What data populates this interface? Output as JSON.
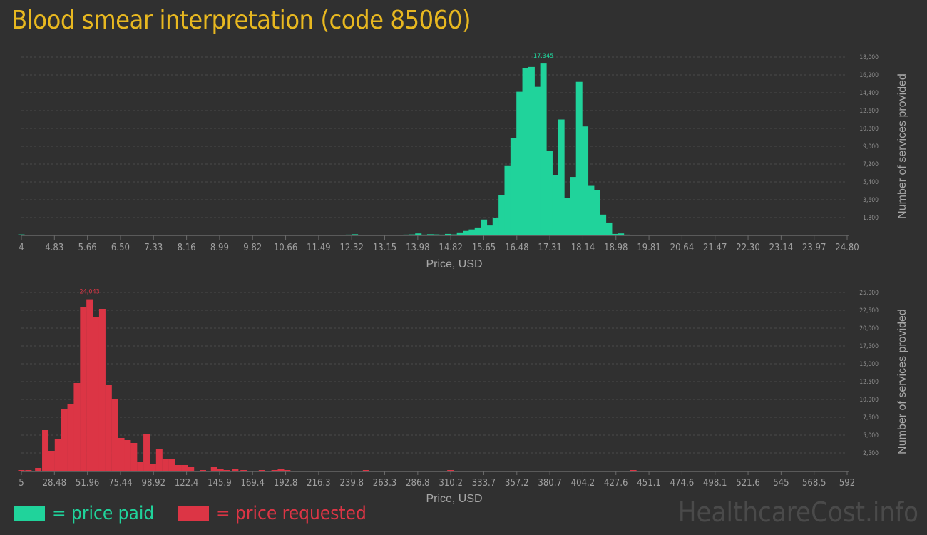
{
  "title": "Blood smear interpretation (code 85060)",
  "legend": {
    "paid_label": "= price paid",
    "requested_label": "= price requested",
    "paid_color": "#20d39b",
    "requested_color": "#dc3545"
  },
  "watermark": "HealthcareCost.info",
  "chart_data": [
    {
      "type": "bar",
      "name": "price paid",
      "xlabel": "Price, USD",
      "ylabel": "Number of services provided",
      "color": "#20d39b",
      "x_tick_labels": [
        "4",
        "4.83",
        "5.66",
        "6.50",
        "7.33",
        "8.16",
        "8.99",
        "9.82",
        "10.66",
        "11.49",
        "12.32",
        "13.15",
        "13.98",
        "14.82",
        "15.65",
        "16.48",
        "17.31",
        "18.14",
        "18.98",
        "19.81",
        "20.64",
        "21.47",
        "22.30",
        "23.14",
        "23.97",
        "24.80"
      ],
      "y_tick_labels": [
        "1,800",
        "3,600",
        "5,400",
        "7,200",
        "9,000",
        "10,800",
        "12,600",
        "14,400",
        "16,200",
        "18,000"
      ],
      "ylim": [
        0,
        18000
      ],
      "peak_label": "17,345",
      "values": [
        100,
        0,
        0,
        0,
        0,
        0,
        0,
        0,
        0,
        0,
        0,
        0,
        0,
        0,
        50,
        0,
        0,
        0,
        0,
        0,
        0,
        0,
        0,
        0,
        0,
        0,
        0,
        0,
        0,
        0,
        0,
        0,
        0,
        0,
        0,
        0,
        0,
        0,
        0,
        0,
        0,
        0,
        0,
        0,
        0,
        0,
        0,
        0,
        0,
        0,
        0,
        0,
        0,
        0,
        0,
        0,
        0,
        0,
        0,
        0,
        0,
        0,
        0,
        0,
        0,
        0,
        0,
        0,
        0,
        0,
        0,
        0,
        0,
        0,
        0,
        0,
        0,
        0,
        0,
        0,
        0,
        0,
        0,
        0,
        0,
        0,
        0,
        0,
        0,
        0,
        0,
        0,
        0,
        0,
        0,
        0,
        0,
        0,
        0,
        0,
        0,
        0,
        0,
        0,
        0,
        0,
        0,
        0,
        0,
        0,
        0,
        0,
        0,
        0,
        0,
        0,
        0,
        0,
        0,
        0,
        0,
        0,
        0,
        0,
        0,
        0,
        0,
        0,
        0,
        0,
        0,
        0,
        0,
        0,
        0,
        0,
        0,
        0,
        0,
        0,
        0,
        0,
        0,
        0,
        0,
        0,
        0,
        0,
        0,
        0,
        0,
        0,
        0,
        0,
        0,
        0,
        0,
        0,
        0,
        0,
        0,
        0,
        0,
        0,
        0,
        0,
        0,
        0,
        0,
        0,
        0,
        0,
        0,
        0,
        0,
        0,
        0,
        0,
        0,
        0,
        0,
        0,
        0,
        0,
        0,
        0,
        0,
        0,
        0,
        0,
        0,
        0,
        0,
        0,
        0,
        0,
        0,
        0,
        0,
        0
      ],
      "bars": [
        {
          "x": 4.0,
          "v": 100
        },
        {
          "x": 6.85,
          "v": 50
        },
        {
          "x": 12.1,
          "v": 60
        },
        {
          "x": 12.25,
          "v": 80
        },
        {
          "x": 12.4,
          "v": 120
        },
        {
          "x": 13.2,
          "v": 60
        },
        {
          "x": 13.55,
          "v": 60
        },
        {
          "x": 13.7,
          "v": 80
        },
        {
          "x": 13.85,
          "v": 100
        },
        {
          "x": 14.0,
          "v": 200
        },
        {
          "x": 14.15,
          "v": 80
        },
        {
          "x": 14.3,
          "v": 120
        },
        {
          "x": 14.45,
          "v": 100
        },
        {
          "x": 14.6,
          "v": 80
        },
        {
          "x": 14.75,
          "v": 150
        },
        {
          "x": 14.9,
          "v": 100
        },
        {
          "x": 15.05,
          "v": 300
        },
        {
          "x": 15.2,
          "v": 450
        },
        {
          "x": 15.35,
          "v": 600
        },
        {
          "x": 15.5,
          "v": 800
        },
        {
          "x": 15.65,
          "v": 1600
        },
        {
          "x": 15.8,
          "v": 1000
        },
        {
          "x": 15.95,
          "v": 1800
        },
        {
          "x": 16.1,
          "v": 4100
        },
        {
          "x": 16.25,
          "v": 7000
        },
        {
          "x": 16.4,
          "v": 9800
        },
        {
          "x": 16.55,
          "v": 14500
        },
        {
          "x": 16.7,
          "v": 16900
        },
        {
          "x": 16.85,
          "v": 17000
        },
        {
          "x": 17.0,
          "v": 15000
        },
        {
          "x": 17.15,
          "v": 17345
        },
        {
          "x": 17.3,
          "v": 8500
        },
        {
          "x": 17.45,
          "v": 6100
        },
        {
          "x": 17.6,
          "v": 11700
        },
        {
          "x": 17.75,
          "v": 3800
        },
        {
          "x": 17.9,
          "v": 5900
        },
        {
          "x": 18.05,
          "v": 15500
        },
        {
          "x": 18.2,
          "v": 11000
        },
        {
          "x": 18.35,
          "v": 5000
        },
        {
          "x": 18.5,
          "v": 4600
        },
        {
          "x": 18.65,
          "v": 2100
        },
        {
          "x": 18.8,
          "v": 1300
        },
        {
          "x": 18.95,
          "v": 150
        },
        {
          "x": 19.1,
          "v": 200
        },
        {
          "x": 19.25,
          "v": 80
        },
        {
          "x": 19.4,
          "v": 60
        },
        {
          "x": 19.7,
          "v": 50
        },
        {
          "x": 20.5,
          "v": 50
        },
        {
          "x": 21.0,
          "v": 50
        },
        {
          "x": 21.55,
          "v": 50
        },
        {
          "x": 21.7,
          "v": 50
        },
        {
          "x": 22.05,
          "v": 50
        },
        {
          "x": 22.4,
          "v": 50
        },
        {
          "x": 22.55,
          "v": 50
        },
        {
          "x": 22.95,
          "v": 50
        }
      ]
    },
    {
      "type": "bar",
      "name": "price requested",
      "xlabel": "Price, USD",
      "ylabel": "Number of services provided",
      "color": "#dc3545",
      "x_tick_labels": [
        "5",
        "28.48",
        "51.96",
        "75.44",
        "98.92",
        "122.4",
        "145.9",
        "169.4",
        "192.8",
        "216.3",
        "239.8",
        "263.3",
        "286.8",
        "310.2",
        "333.7",
        "357.2",
        "380.7",
        "404.2",
        "427.6",
        "451.1",
        "474.6",
        "498.1",
        "521.6",
        "545",
        "568.5",
        "592"
      ],
      "y_tick_labels": [
        "2,500",
        "5,000",
        "7,500",
        "10,000",
        "12,500",
        "15,000",
        "17,500",
        "20,000",
        "22,500",
        "25,000"
      ],
      "ylim": [
        0,
        25000
      ],
      "peak_label": "24,043",
      "values": [],
      "bars": [
        {
          "x": 5.0,
          "v": 100
        },
        {
          "x": 10.0,
          "v": 100
        },
        {
          "x": 17.0,
          "v": 400
        },
        {
          "x": 22.0,
          "v": 5700
        },
        {
          "x": 26.5,
          "v": 2800
        },
        {
          "x": 31.0,
          "v": 4500
        },
        {
          "x": 35.5,
          "v": 8600
        },
        {
          "x": 40.0,
          "v": 9400
        },
        {
          "x": 44.5,
          "v": 12300
        },
        {
          "x": 49.0,
          "v": 22900
        },
        {
          "x": 53.5,
          "v": 24043
        },
        {
          "x": 58.0,
          "v": 21600
        },
        {
          "x": 62.5,
          "v": 22700
        },
        {
          "x": 67.0,
          "v": 12000
        },
        {
          "x": 71.5,
          "v": 10100
        },
        {
          "x": 76.0,
          "v": 4600
        },
        {
          "x": 80.5,
          "v": 4300
        },
        {
          "x": 85.0,
          "v": 3900
        },
        {
          "x": 89.5,
          "v": 1200
        },
        {
          "x": 94.0,
          "v": 5200
        },
        {
          "x": 98.5,
          "v": 900
        },
        {
          "x": 103.0,
          "v": 3000
        },
        {
          "x": 107.5,
          "v": 1600
        },
        {
          "x": 112.0,
          "v": 1700
        },
        {
          "x": 116.5,
          "v": 800
        },
        {
          "x": 121.0,
          "v": 800
        },
        {
          "x": 125.5,
          "v": 600
        },
        {
          "x": 134.0,
          "v": 100
        },
        {
          "x": 142.0,
          "v": 500
        },
        {
          "x": 146.5,
          "v": 200
        },
        {
          "x": 151.0,
          "v": 100
        },
        {
          "x": 157.0,
          "v": 300
        },
        {
          "x": 163.0,
          "v": 100
        },
        {
          "x": 176.0,
          "v": 100
        },
        {
          "x": 185.0,
          "v": 100
        },
        {
          "x": 189.5,
          "v": 300
        },
        {
          "x": 194.0,
          "v": 100
        },
        {
          "x": 250.0,
          "v": 100
        },
        {
          "x": 310.0,
          "v": 100
        },
        {
          "x": 440.0,
          "v": 50
        }
      ]
    }
  ]
}
